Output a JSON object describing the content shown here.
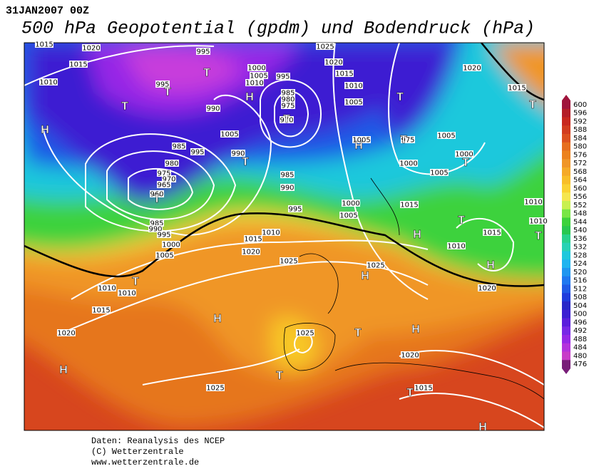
{
  "header": {
    "date": "31JAN2007 00Z",
    "title": "500 hPa Geopotential (gpdm) und Bodendruck (hPa)"
  },
  "colorbar": {
    "levels": [
      600,
      596,
      592,
      588,
      584,
      580,
      576,
      572,
      568,
      564,
      560,
      556,
      552,
      548,
      544,
      540,
      536,
      532,
      528,
      524,
      520,
      516,
      512,
      508,
      504,
      500,
      496,
      492,
      488,
      484,
      480,
      476
    ],
    "colors": [
      "#a0143c",
      "#b41e28",
      "#c8281e",
      "#d23c1e",
      "#dc501e",
      "#e66e1e",
      "#ec821e",
      "#f09628",
      "#f5aa28",
      "#f8be28",
      "#fad232",
      "#f5e650",
      "#c8f050",
      "#78e646",
      "#3cd23c",
      "#28c850",
      "#28d28c",
      "#28d2b4",
      "#1ec8dc",
      "#1eb4f0",
      "#1e96f0",
      "#1e78f0",
      "#1e5ae6",
      "#1e3cdc",
      "#2828c8",
      "#3c1ed2",
      "#5a1edc",
      "#7828e6",
      "#9628e6",
      "#b432dc",
      "#c83cc8",
      "#781e78"
    ]
  },
  "map": {
    "isobar_labels": [
      "1015",
      "1020",
      "1015",
      "1010",
      "995",
      "995",
      "1000",
      "1005",
      "1010",
      "995",
      "1025",
      "1020",
      "1015",
      "1010",
      "1005",
      "985",
      "980",
      "975",
      "970",
      "990",
      "1005",
      "995",
      "990",
      "985",
      "980",
      "975",
      "970",
      "965",
      "960",
      "985",
      "990",
      "995",
      "1000",
      "1005",
      "985",
      "990",
      "995",
      "1000",
      "1005",
      "1010",
      "1015",
      "1020",
      "1025",
      "1005",
      "975",
      "1000",
      "1005",
      "1000",
      "1005",
      "1010",
      "1015",
      "1010",
      "1015",
      "1020",
      "1025",
      "1010",
      "1010",
      "1015",
      "1020",
      "1025",
      "1025",
      "1020",
      "1015",
      "1020",
      "1015",
      "1010"
    ],
    "centers": [
      "T",
      "T",
      "T",
      "H",
      "T",
      "T",
      "H",
      "T",
      "H",
      "T",
      "T",
      "T",
      "T",
      "H",
      "T",
      "H",
      "T",
      "H",
      "H",
      "T",
      "H",
      "T",
      "H",
      "T",
      "T",
      "H"
    ]
  },
  "footer": [
    "Daten: Reanalysis des NCEP",
    "(C) Wetterzentrale",
    "www.wetterzentrale.de"
  ]
}
